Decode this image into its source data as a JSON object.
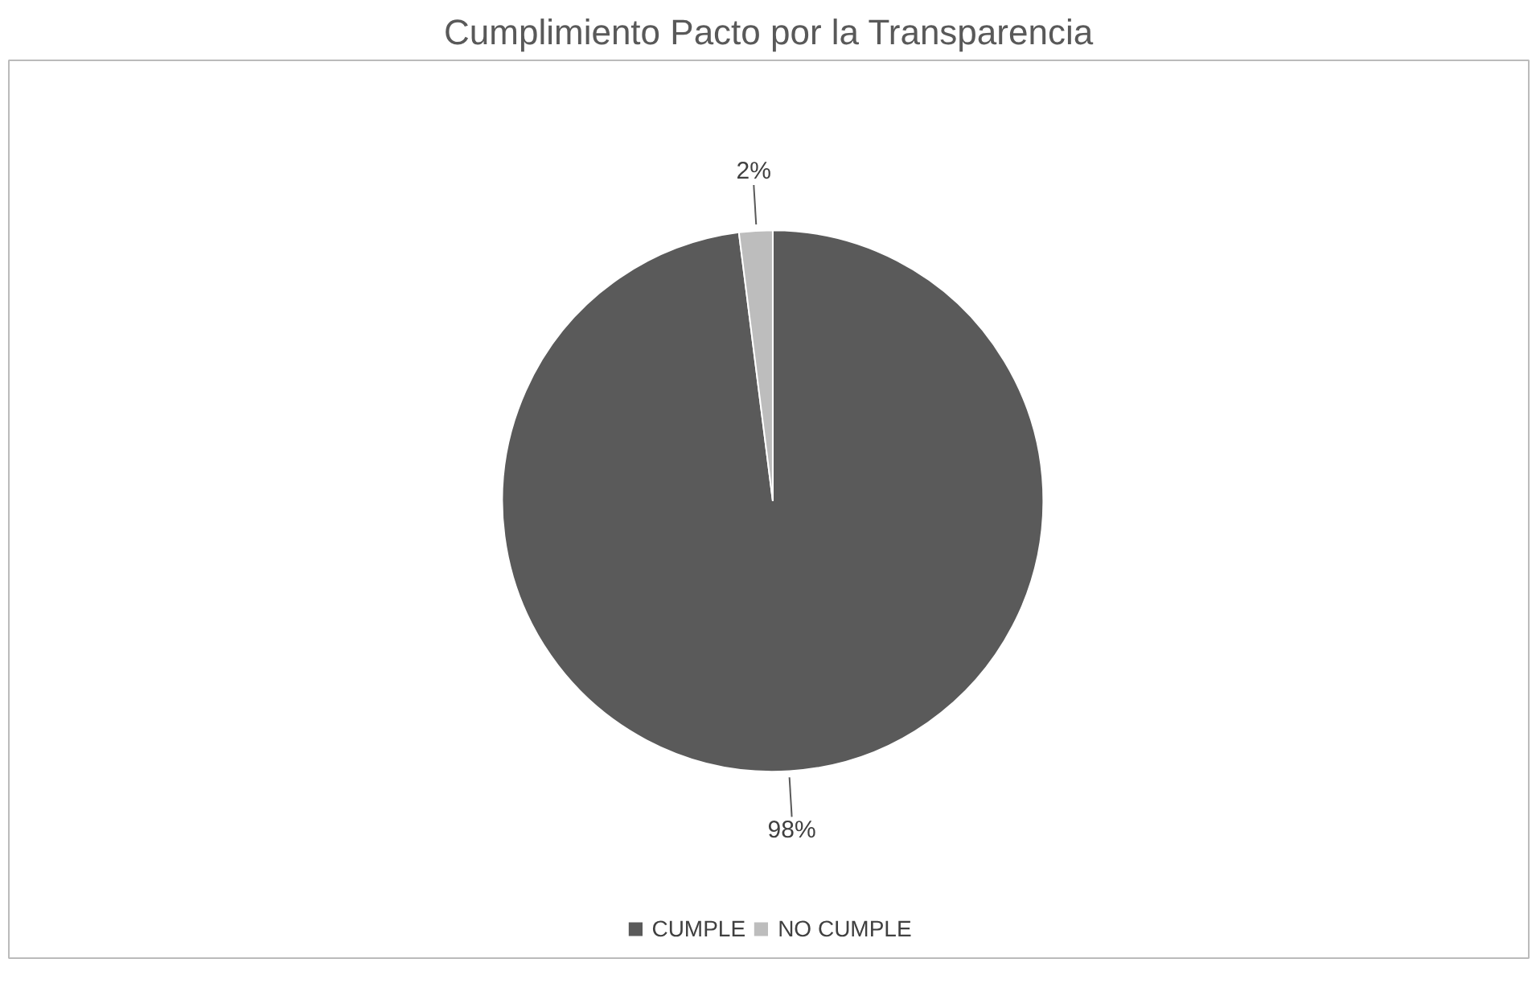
{
  "chart_data": {
    "type": "pie",
    "title": "Cumplimiento Pacto por la Transparencia",
    "categories": [
      "CUMPLE",
      "NO CUMPLE"
    ],
    "values": [
      98,
      2
    ],
    "colors": [
      "#5a5a5a",
      "#bdbdbd"
    ],
    "value_labels": [
      "98%",
      "2%"
    ],
    "legend": "bottom"
  }
}
